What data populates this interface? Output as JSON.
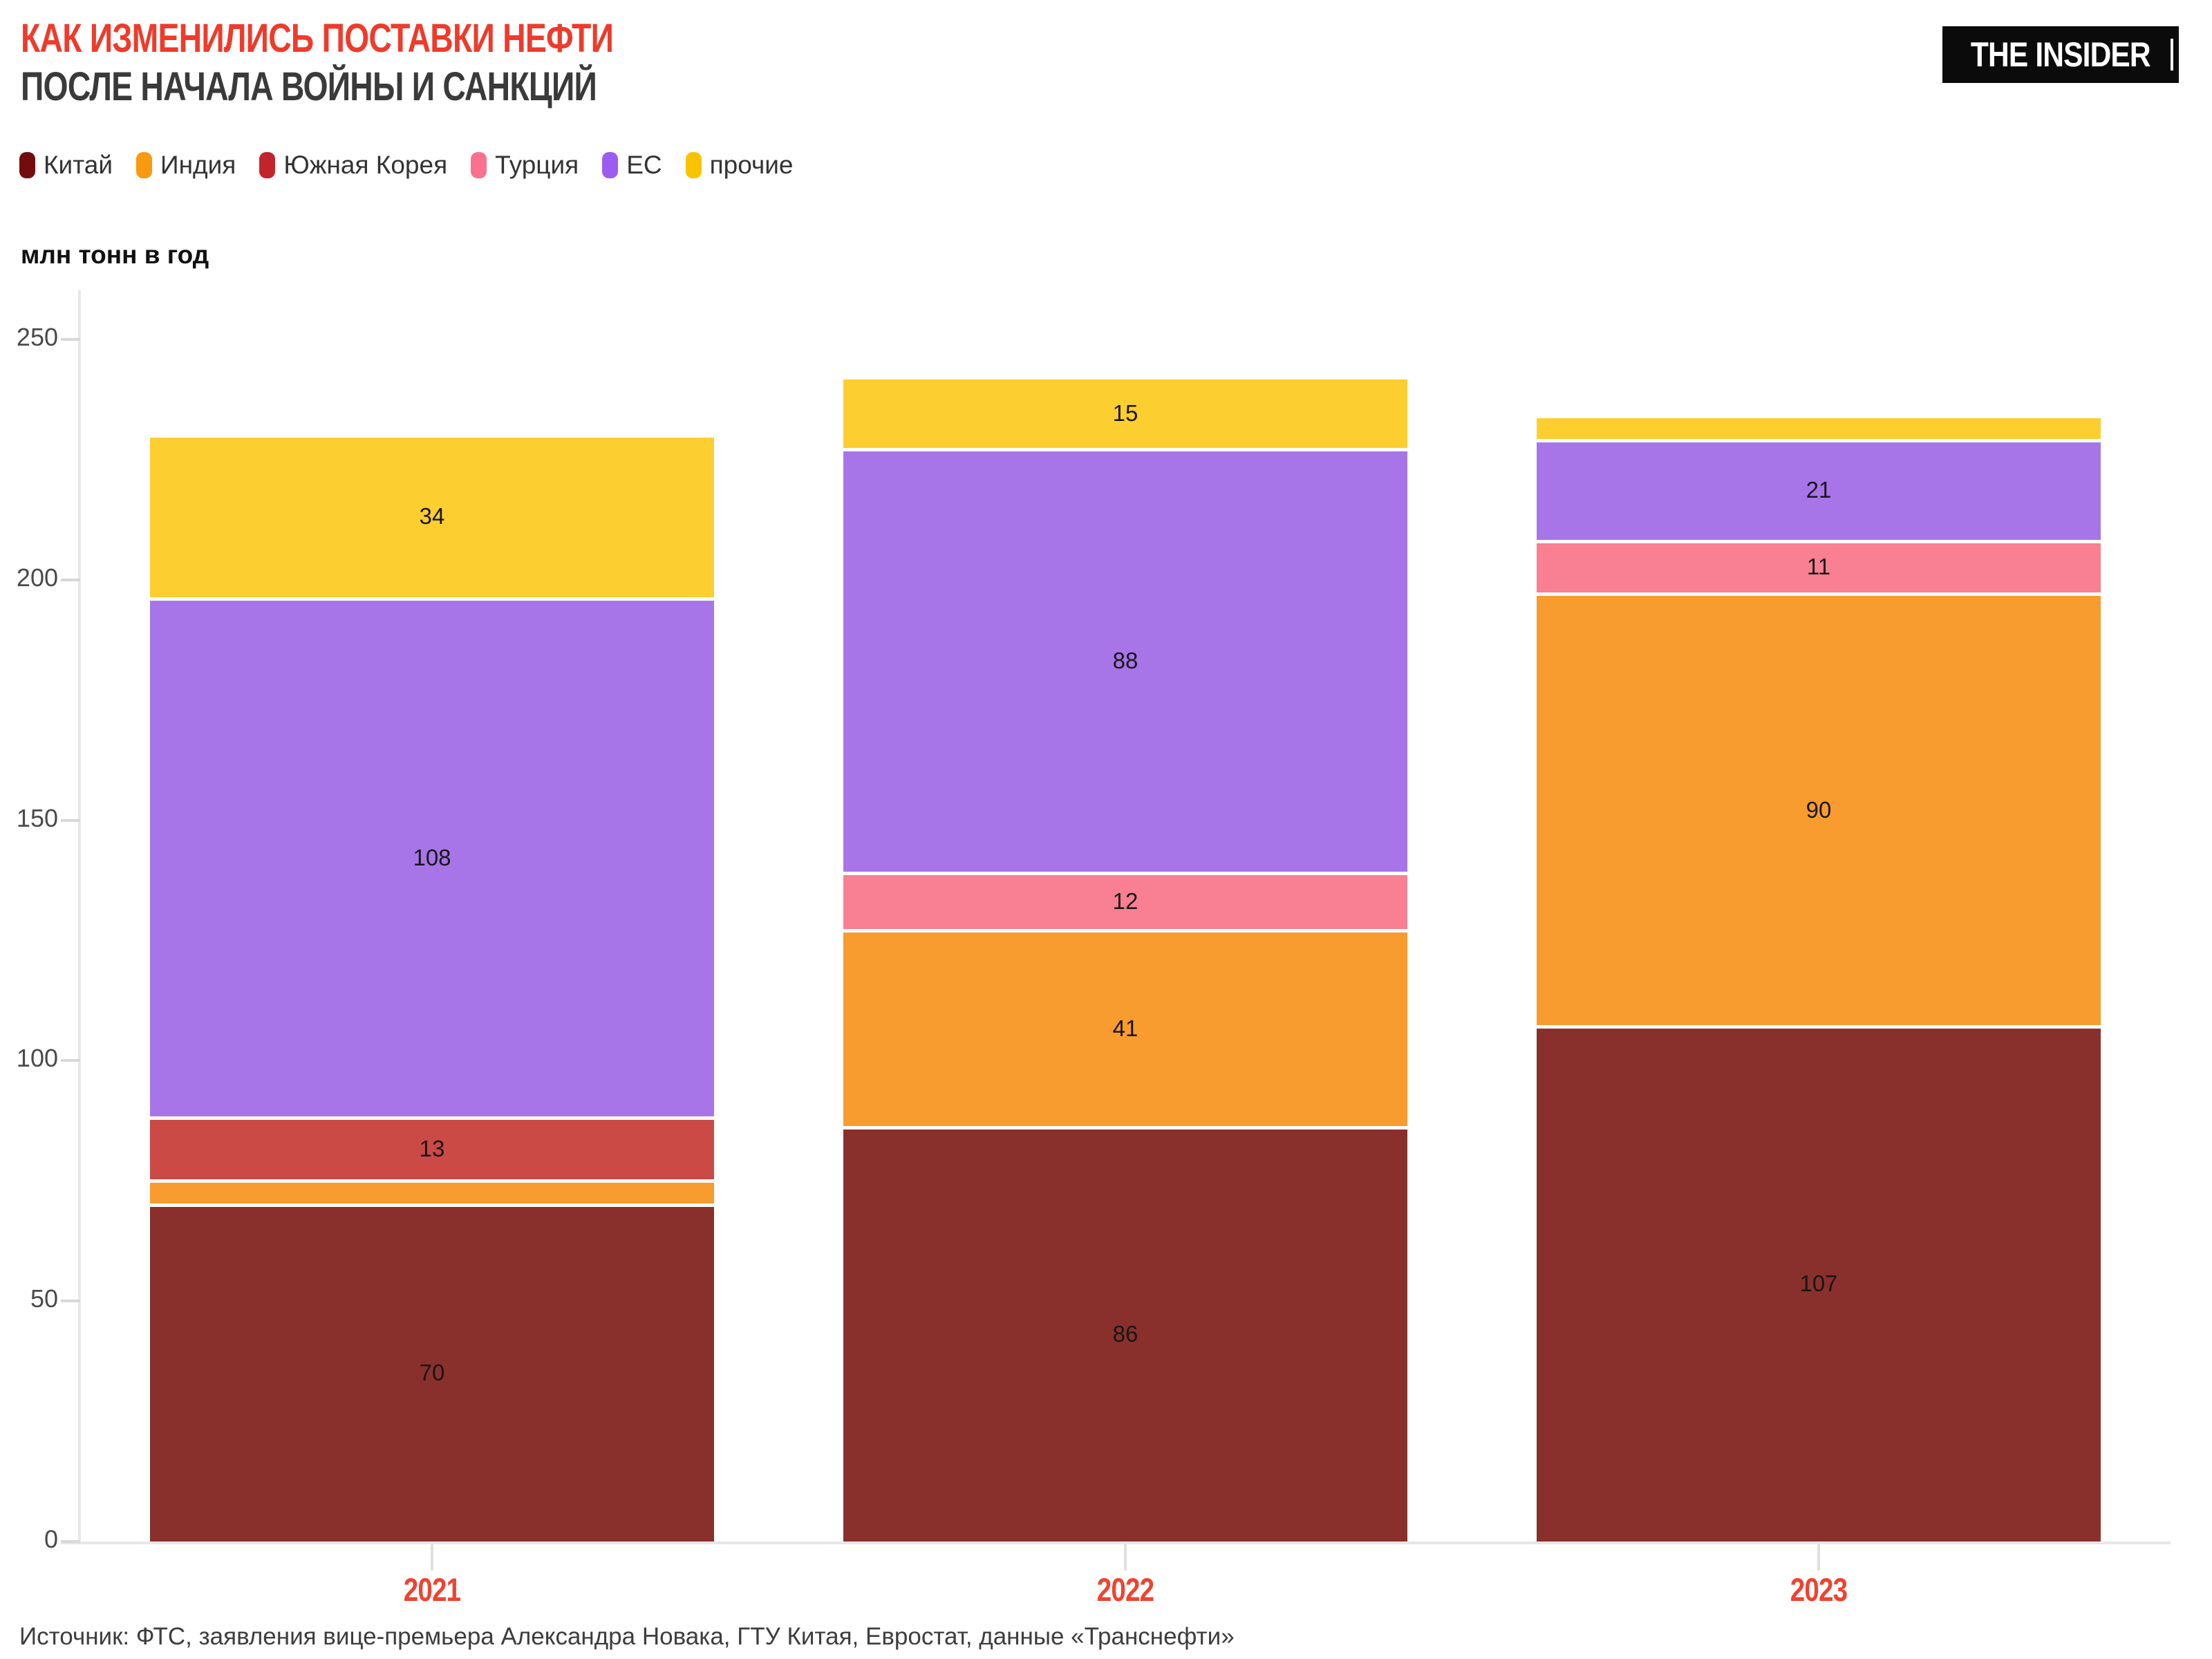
{
  "header": {
    "title_line1": "КАК ИЗМЕНИЛИСЬ ПОСТАВКИ НЕФТИ",
    "title_line2": "ПОСЛЕ НАЧАЛА ВОЙНЫ И САНКЦИЙ",
    "logo_text": "THE INSIDER"
  },
  "axis_title": "млн тонн в год",
  "legend": [
    {
      "label": "Китай",
      "color": "#720C0F"
    },
    {
      "label": "Индия",
      "color": "#F8990F"
    },
    {
      "label": "Южная Корея",
      "color": "#C2242B"
    },
    {
      "label": "Турция",
      "color": "#F9718F"
    },
    {
      "label": "ЕС",
      "color": "#9C5CEF"
    },
    {
      "label": "прочие",
      "color": "#F8C400"
    }
  ],
  "chart_data": {
    "type": "bar",
    "stacked": true,
    "title": "КАК ИЗМЕНИЛИСЬ ПОСТАВКИ НЕФТИ ПОСЛЕ НАЧАЛА ВОЙНЫ И САНКЦИЙ",
    "ylabel": "млн тонн в год",
    "categories": [
      "2021",
      "2022",
      "2023"
    ],
    "series": [
      {
        "name": "Китай",
        "color": "#8A302C",
        "values": [
          70,
          86,
          107
        ]
      },
      {
        "name": "Индия",
        "color": "#F99C2F",
        "values": [
          5,
          41,
          90
        ]
      },
      {
        "name": "Южная Корея",
        "color": "#CB4A46",
        "values": [
          13,
          0,
          0
        ]
      },
      {
        "name": "Турция",
        "color": "#F97F93",
        "values": [
          0,
          12,
          11
        ]
      },
      {
        "name": "ЕС",
        "color": "#A875E8",
        "values": [
          108,
          88,
          21
        ]
      },
      {
        "name": "прочие",
        "color": "#FDCE30",
        "values": [
          34,
          15,
          5
        ]
      }
    ],
    "totals": [
      230,
      242,
      234
    ],
    "ylim": [
      0,
      250
    ],
    "yticks": [
      0,
      50,
      100,
      150,
      200,
      250
    ],
    "label_min": 10,
    "grid": false,
    "legend_position": "top"
  },
  "source": "Источник: ФТС, заявления вице-премьера Александра Новака, ГТУ Китая, Евростат, данные «Транснефти»"
}
